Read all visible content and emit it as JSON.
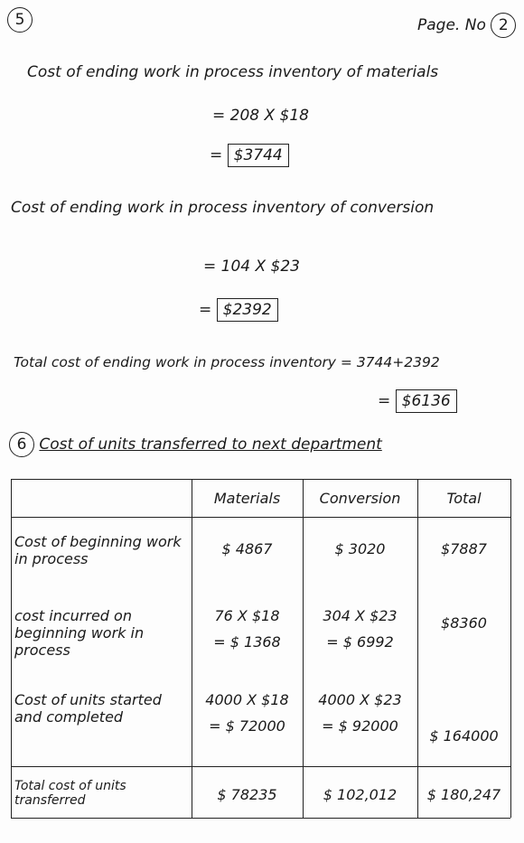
{
  "header": {
    "step": "5",
    "page_label": "Page. No",
    "page_number": "2"
  },
  "section5": {
    "materials_label": "Cost of ending work in process inventory of materials",
    "materials_calc": "= 208 X $18",
    "materials_result": "$3744",
    "conversion_label": "Cost of ending work in process inventory of conversion",
    "conversion_calc": "= 104 X $23",
    "conversion_result": "$2392",
    "total_label": "Total cost of ending work in process inventory = 3744+2392",
    "total_result": "$6136"
  },
  "section6": {
    "step": "6",
    "heading": "Cost of units transferred to next department",
    "table": {
      "header": [
        "Materials",
        "Conversion",
        "Total"
      ],
      "rows": [
        {
          "label": "Cost of beginning work in process",
          "materials": [
            "$ 4867"
          ],
          "conversion": [
            "$ 3020"
          ],
          "total": "$7887"
        },
        {
          "label": "cost incurred on beginning work in process",
          "materials": [
            "76 X $18",
            "= $ 1368"
          ],
          "conversion": [
            "304 X $23",
            "= $ 6992"
          ],
          "total": "$8360"
        },
        {
          "label": "Cost of units started and completed",
          "materials": [
            "4000 X $18",
            "= $ 72000"
          ],
          "conversion": [
            "4000 X $23",
            "= $ 92000"
          ],
          "total": "$ 164000"
        },
        {
          "label": "Total cost of units transferred",
          "materials": [
            "$ 78235"
          ],
          "conversion": [
            "$ 102,012"
          ],
          "total": "$ 180,247"
        }
      ]
    }
  }
}
